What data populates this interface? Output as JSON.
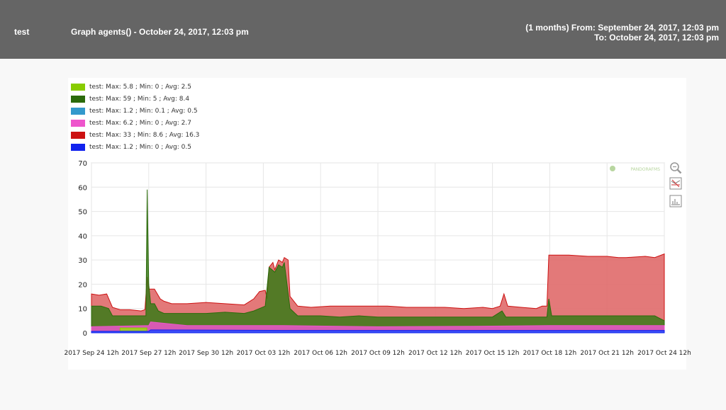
{
  "header": {
    "agent": "test",
    "title": "Graph agents() - October 24, 2017, 12:03 pm",
    "range_line1": "(1 months) From: September 24, 2017, 12:03 pm",
    "range_line2": "To: October 24, 2017, 12:03 pm"
  },
  "watermark": "PANDORAFMS",
  "tools": [
    "zoom-icon",
    "hide-graph-icon",
    "graph-type-icon"
  ],
  "chart_data": {
    "type": "area",
    "title": "",
    "xlabel": "",
    "ylabel": "",
    "ylim": [
      0,
      70
    ],
    "yticks": [
      0,
      10,
      20,
      30,
      40,
      50,
      60,
      70
    ],
    "xlim": [
      0,
      30
    ],
    "xticks": [
      {
        "x": 0,
        "label": "2017 Sep 24 12h"
      },
      {
        "x": 3,
        "label": "2017 Sep 27 12h"
      },
      {
        "x": 6,
        "label": "2017 Sep 30 12h"
      },
      {
        "x": 9,
        "label": "2017 Oct 03 12h"
      },
      {
        "x": 12,
        "label": "2017 Oct 06 12h"
      },
      {
        "x": 15,
        "label": "2017 Oct 09 12h"
      },
      {
        "x": 18,
        "label": "2017 Oct 12 12h"
      },
      {
        "x": 21,
        "label": "2017 Oct 15 12h"
      },
      {
        "x": 24,
        "label": "2017 Oct 18 12h"
      },
      {
        "x": 27,
        "label": "2017 Oct 21 12h"
      },
      {
        "x": 30,
        "label": "2017 Oct 24 12h"
      }
    ],
    "grid": true,
    "legend_position": "top-left",
    "series": [
      {
        "legend": "test: Max: 33 ; Min: 8.6 ; Avg: 16.3",
        "color": "#cc1111",
        "fill": "#e06a6a",
        "points": [
          [
            0,
            16
          ],
          [
            0.4,
            15.5
          ],
          [
            0.8,
            16
          ],
          [
            1.1,
            10.5
          ],
          [
            1.5,
            9.5
          ],
          [
            2.0,
            9.5
          ],
          [
            2.6,
            9
          ],
          [
            2.8,
            9.5
          ],
          [
            2.92,
            23
          ],
          [
            3.0,
            18
          ],
          [
            3.3,
            18
          ],
          [
            3.6,
            14
          ],
          [
            3.8,
            13
          ],
          [
            4.2,
            12
          ],
          [
            5,
            12
          ],
          [
            6,
            12.5
          ],
          [
            7,
            12
          ],
          [
            8,
            11.5
          ],
          [
            8.5,
            14
          ],
          [
            8.8,
            17
          ],
          [
            9.1,
            17.5
          ],
          [
            9.2,
            14
          ],
          [
            9.3,
            27
          ],
          [
            9.5,
            29
          ],
          [
            9.6,
            26
          ],
          [
            9.8,
            30
          ],
          [
            10,
            29
          ],
          [
            10.1,
            31
          ],
          [
            10.3,
            30
          ],
          [
            10.4,
            15
          ],
          [
            10.8,
            11
          ],
          [
            11.5,
            10.5
          ],
          [
            12.5,
            11
          ],
          [
            13.5,
            11
          ],
          [
            14.5,
            11
          ],
          [
            15.5,
            11
          ],
          [
            16.5,
            10.5
          ],
          [
            17.5,
            10.5
          ],
          [
            18.5,
            10.5
          ],
          [
            19.5,
            10
          ],
          [
            20.5,
            10.5
          ],
          [
            21.0,
            10
          ],
          [
            21.4,
            11
          ],
          [
            21.6,
            16
          ],
          [
            21.8,
            11
          ],
          [
            22.5,
            10.5
          ],
          [
            23.3,
            10
          ],
          [
            23.6,
            11
          ],
          [
            23.85,
            11
          ],
          [
            23.95,
            32
          ],
          [
            25,
            32
          ],
          [
            26,
            31.5
          ],
          [
            27,
            31.5
          ],
          [
            27.6,
            31
          ],
          [
            28,
            31
          ],
          [
            29,
            31.5
          ],
          [
            29.5,
            31
          ],
          [
            30,
            32.5
          ],
          [
            30,
            0
          ],
          [
            0,
            0
          ]
        ]
      },
      {
        "legend": "test: Max: 59 ; Min: 5 ; Avg: 8.4",
        "color": "#2b6a0b",
        "fill": "#3a7a18",
        "points": [
          [
            0,
            11
          ],
          [
            0.5,
            11
          ],
          [
            0.9,
            10
          ],
          [
            1.1,
            7
          ],
          [
            1.5,
            7
          ],
          [
            2.0,
            7
          ],
          [
            2.7,
            7
          ],
          [
            2.85,
            7
          ],
          [
            2.92,
            59
          ],
          [
            3.0,
            20
          ],
          [
            3.1,
            12
          ],
          [
            3.3,
            12
          ],
          [
            3.5,
            9
          ],
          [
            3.8,
            8
          ],
          [
            5,
            8
          ],
          [
            6,
            8
          ],
          [
            7,
            8.5
          ],
          [
            8,
            8
          ],
          [
            8.5,
            9
          ],
          [
            8.8,
            10
          ],
          [
            9.1,
            11
          ],
          [
            9.3,
            27
          ],
          [
            9.6,
            25
          ],
          [
            9.8,
            28
          ],
          [
            10,
            27
          ],
          [
            10.1,
            29
          ],
          [
            10.4,
            10
          ],
          [
            10.8,
            7
          ],
          [
            12,
            7
          ],
          [
            13,
            6.5
          ],
          [
            14,
            7
          ],
          [
            15,
            6.5
          ],
          [
            16,
            6.5
          ],
          [
            17,
            6.5
          ],
          [
            18,
            6.5
          ],
          [
            19,
            6.5
          ],
          [
            20,
            6.5
          ],
          [
            21,
            6.5
          ],
          [
            21.5,
            9
          ],
          [
            21.7,
            6.5
          ],
          [
            22.5,
            6.5
          ],
          [
            23.3,
            6.5
          ],
          [
            23.85,
            6.5
          ],
          [
            23.95,
            14
          ],
          [
            24.1,
            7
          ],
          [
            25,
            7
          ],
          [
            26,
            7
          ],
          [
            27,
            7
          ],
          [
            28,
            7
          ],
          [
            29,
            7
          ],
          [
            29.5,
            7
          ],
          [
            30,
            5
          ],
          [
            30,
            0
          ],
          [
            0,
            0
          ]
        ]
      },
      {
        "legend": "test: Max: 6.2 ; Min: 0 ; Avg: 2.7",
        "color": "#ee55cc",
        "fill": "#ee55cc",
        "points": [
          [
            0,
            2.5
          ],
          [
            3,
            3
          ],
          [
            3.1,
            4.5
          ],
          [
            5,
            3
          ],
          [
            10,
            3
          ],
          [
            15,
            2.5
          ],
          [
            20,
            2.7
          ],
          [
            24,
            3
          ],
          [
            30,
            3
          ],
          [
            30,
            0
          ],
          [
            0,
            0
          ]
        ]
      },
      {
        "legend": "test: Max: 5.8 ; Min: 0 ; Avg: 2.5",
        "color": "#88cc00",
        "fill": "#99dd11",
        "points": [
          [
            1.5,
            2
          ],
          [
            2.9,
            2
          ],
          [
            2.9,
            0
          ],
          [
            1.5,
            0
          ]
        ]
      },
      {
        "legend": "test: Max: 1.2 ; Min: 0.1 ; Avg: 0.5",
        "color": "#3399cc",
        "fill": "#3399cc",
        "points": [
          [
            0,
            0.5
          ],
          [
            30,
            0.5
          ],
          [
            30,
            0
          ],
          [
            0,
            0
          ]
        ]
      },
      {
        "legend": "test: Max: 1.2 ; Min: 0 ; Avg: 0.5",
        "color": "#1122ee",
        "fill": "#3344ff",
        "points": [
          [
            0,
            0.6
          ],
          [
            3,
            0.6
          ],
          [
            3.1,
            1.2
          ],
          [
            10,
            1
          ],
          [
            20,
            1
          ],
          [
            30,
            1
          ],
          [
            30,
            0
          ],
          [
            0,
            0
          ]
        ]
      }
    ],
    "legend_order": [
      3,
      1,
      4,
      2,
      0,
      5
    ]
  }
}
